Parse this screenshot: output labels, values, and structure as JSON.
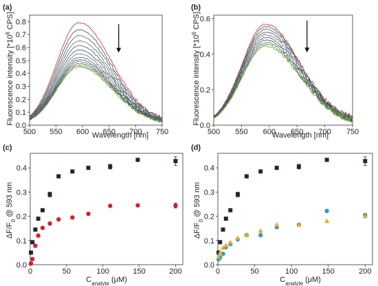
{
  "chart_data": [
    {
      "type": "line",
      "panel_label": "(a)",
      "xlabel": "Wavelength [nm]",
      "ylabel_parts": [
        "Fluorescence intensity [*10",
        "6",
        " CPS]"
      ],
      "xlim": [
        500,
        750
      ],
      "ylim": [
        0,
        0.85
      ],
      "xticks": [
        500,
        550,
        600,
        650,
        700,
        750
      ],
      "yticks": [
        0.0,
        0.1,
        0.2,
        0.3,
        0.4,
        0.5,
        0.6,
        0.7,
        0.8
      ],
      "series": [
        {
          "color": "#d4202a",
          "peak": 0.785
        },
        {
          "color": "#3a4a52",
          "peak": 0.73
        },
        {
          "color": "#4a5a62",
          "peak": 0.685
        },
        {
          "color": "#5a6a72",
          "peak": 0.645
        },
        {
          "color": "#4a5a62",
          "peak": 0.61
        },
        {
          "color": "#3a4a52",
          "peak": 0.575
        },
        {
          "color": "#5a6a72",
          "peak": 0.545
        },
        {
          "color": "#4a5a62",
          "peak": 0.52
        },
        {
          "color": "#3a4a52",
          "peak": 0.5
        },
        {
          "color": "#5a6a72",
          "peak": 0.485
        },
        {
          "color": "#3a4a52",
          "peak": 0.47
        },
        {
          "color": "#5b8f2a",
          "peak": 0.455
        },
        {
          "color": "#6aa034",
          "peak": 0.445
        }
      ],
      "annotations": [
        {
          "type": "arrow",
          "x": 668,
          "y_from": 0.78,
          "y_to": 0.56,
          "direction": "down"
        }
      ]
    },
    {
      "type": "line",
      "panel_label": "(b)",
      "xlabel": "Wavelength [nm]",
      "ylabel_parts": [
        "Fluorescence intensity [*10",
        "6",
        " CPS]"
      ],
      "xlim": [
        500,
        750
      ],
      "ylim": [
        0,
        0.62
      ],
      "xticks": [
        500,
        550,
        600,
        650,
        700,
        750
      ],
      "yticks": [
        0.0,
        0.2,
        0.4,
        0.6
      ],
      "series": [
        {
          "color": "#d4202a",
          "peak": 0.565
        },
        {
          "color": "#3a4a52",
          "peak": 0.55
        },
        {
          "color": "#4a5a62",
          "peak": 0.535
        },
        {
          "color": "#3a4a52",
          "peak": 0.52
        },
        {
          "color": "#5a6a72",
          "peak": 0.505
        },
        {
          "color": "#4a5a62",
          "peak": 0.49
        },
        {
          "color": "#3a4a52",
          "peak": 0.475
        },
        {
          "color": "#5a6a72",
          "peak": 0.462
        },
        {
          "color": "#5b8f2a",
          "peak": 0.45
        },
        {
          "color": "#6aa034",
          "peak": 0.44
        }
      ],
      "annotations": [
        {
          "type": "arrow",
          "x": 668,
          "y_from": 0.59,
          "y_to": 0.41,
          "direction": "down"
        }
      ]
    },
    {
      "type": "scatter",
      "panel_label": "(c)",
      "xlabel_parts": [
        "C",
        "analyte",
        " (μM)"
      ],
      "ylabel_parts": [
        "ΔF/F",
        "0",
        " @ 593 nm"
      ],
      "xlim": [
        0,
        210
      ],
      "ylim": [
        0,
        0.46
      ],
      "xticks": [
        0,
        50,
        100,
        150,
        200
      ],
      "yticks": [
        0.0,
        0.1,
        0.2,
        0.3,
        0.4
      ],
      "series": [
        {
          "marker": "square",
          "color": "#1a2a32",
          "x": [
            1,
            3,
            7,
            11,
            17,
            27,
            39,
            58,
            80,
            110,
            148,
            200
          ],
          "y": [
            0.05,
            0.093,
            0.145,
            0.19,
            0.225,
            0.29,
            0.365,
            0.385,
            0.4,
            0.405,
            0.433,
            0.428
          ],
          "err": [
            0,
            0,
            0,
            0,
            0,
            0.01,
            0,
            0,
            0,
            0.01,
            0,
            0.018
          ]
        },
        {
          "marker": "circle",
          "color": "#d4202a",
          "x": [
            1,
            3,
            7,
            11,
            17,
            27,
            39,
            58,
            80,
            110,
            148,
            200
          ],
          "y": [
            0.005,
            0.023,
            0.078,
            0.12,
            0.152,
            0.17,
            0.187,
            0.195,
            0.21,
            0.243,
            0.245,
            0.244
          ],
          "err": [
            0,
            0,
            0,
            0,
            0,
            0,
            0,
            0,
            0,
            0,
            0,
            0.01
          ]
        }
      ]
    },
    {
      "type": "scatter",
      "panel_label": "(d)",
      "xlabel_parts": [
        "C",
        "analyte",
        " (μM)"
      ],
      "ylabel_parts": [
        "ΔF/F",
        "0",
        " @ 593 nm"
      ],
      "xlim": [
        0,
        210
      ],
      "ylim": [
        0,
        0.46
      ],
      "xticks": [
        0,
        50,
        100,
        150,
        200
      ],
      "yticks": [
        0.0,
        0.1,
        0.2,
        0.3,
        0.4
      ],
      "series": [
        {
          "marker": "square",
          "color": "#1a2a32",
          "x": [
            1,
            3,
            7,
            11,
            17,
            27,
            39,
            58,
            80,
            110,
            148,
            200
          ],
          "y": [
            0.05,
            0.093,
            0.145,
            0.19,
            0.225,
            0.29,
            0.365,
            0.385,
            0.4,
            0.405,
            0.433,
            0.428
          ],
          "err": [
            0,
            0,
            0,
            0,
            0,
            0.01,
            0,
            0,
            0,
            0.01,
            0,
            0.018
          ]
        },
        {
          "marker": "circle",
          "color": "#2b9cd8",
          "x": [
            1,
            3,
            7,
            11,
            17,
            27,
            39,
            58,
            80,
            110,
            148,
            200
          ],
          "y": [
            0.022,
            0.03,
            0.045,
            0.072,
            0.085,
            0.105,
            0.122,
            0.122,
            0.155,
            0.165,
            0.222,
            0.205
          ],
          "err": [
            0,
            0,
            0,
            0,
            0,
            0,
            0,
            0,
            0,
            0,
            0,
            0
          ]
        },
        {
          "marker": "triangle",
          "color": "#f2a81d",
          "x": [
            1,
            3,
            7,
            11,
            17,
            27,
            39,
            58,
            80,
            110,
            148,
            200
          ],
          "y": [
            0.032,
            0.05,
            0.07,
            0.08,
            0.092,
            0.11,
            0.122,
            0.14,
            0.165,
            0.165,
            0.18,
            0.2
          ],
          "err": [
            0,
            0,
            0,
            0,
            0,
            0,
            0,
            0,
            0,
            0,
            0,
            0
          ]
        }
      ]
    }
  ]
}
